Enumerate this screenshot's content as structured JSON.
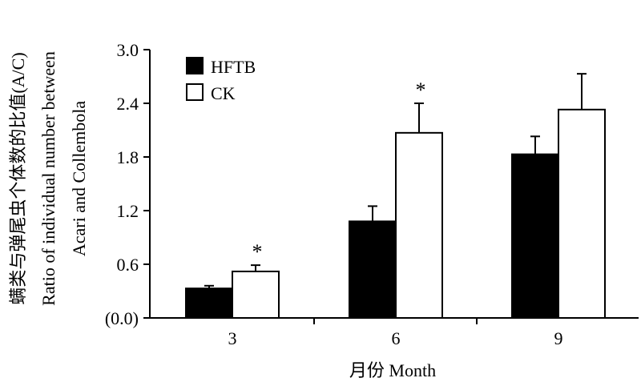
{
  "chart_data": {
    "type": "bar",
    "categories": [
      "3",
      "6",
      "9"
    ],
    "series": [
      {
        "name": "HFTB",
        "values": [
          0.33,
          1.08,
          1.83
        ],
        "errors": [
          0.03,
          0.17,
          0.2
        ],
        "color": "#000000"
      },
      {
        "name": "CK",
        "values": [
          0.52,
          2.07,
          2.33
        ],
        "errors": [
          0.07,
          0.33,
          0.4
        ],
        "color": "#ffffff"
      }
    ],
    "significance": [
      {
        "category": "3",
        "series": "CK",
        "label": "*"
      },
      {
        "category": "6",
        "series": "CK",
        "label": "*"
      }
    ],
    "xlabel": "月份 Month",
    "ylabel_line1": "螨类与弹尾虫个体数的比值(A/C)",
    "ylabel_line2": "Ratio of individual number between",
    "ylabel_line3": "Acari and Collembola",
    "ylim": [
      0,
      3.0
    ],
    "yticks": [
      0.0,
      0.6,
      1.2,
      1.8,
      2.4,
      3.0
    ],
    "ytick_labels": [
      "(0.0)",
      "0.6",
      "1.2",
      "1.8",
      "2.4",
      "3.0"
    ],
    "legend_position": "top-left",
    "grid": false
  }
}
